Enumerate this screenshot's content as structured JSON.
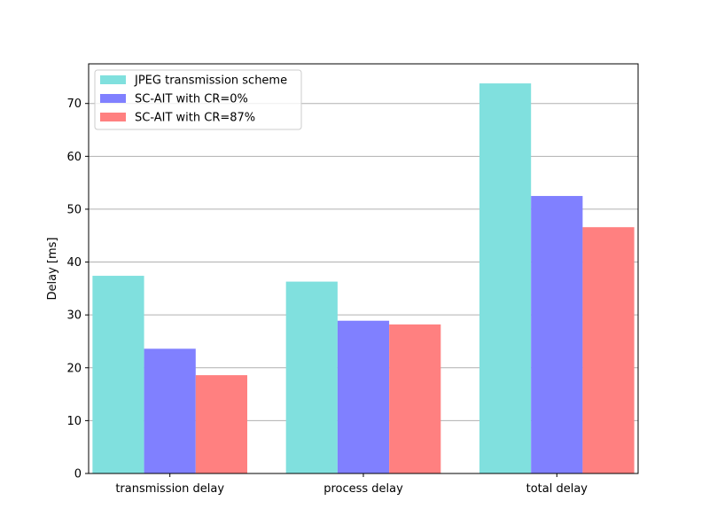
{
  "chart_data": {
    "type": "bar",
    "categories": [
      "transmission delay",
      "process delay",
      "total delay"
    ],
    "series": [
      {
        "name": "JPEG transmission scheme",
        "values": [
          37.4,
          36.3,
          73.8
        ],
        "color": "#80e0de"
      },
      {
        "name": "SC-AIT with CR=0%",
        "values": [
          23.6,
          28.9,
          52.5
        ],
        "color": "#8080ff"
      },
      {
        "name": "SC-AIT with CR=87%",
        "values": [
          18.6,
          28.2,
          46.6
        ],
        "color": "#ff8080"
      }
    ],
    "title": "",
    "xlabel": "",
    "ylabel": "Delay [ms]",
    "ylim": [
      0,
      77.5
    ],
    "yticks": [
      0,
      10,
      20,
      30,
      40,
      50,
      60,
      70
    ],
    "grid": "y",
    "legend_position": "top-left"
  }
}
